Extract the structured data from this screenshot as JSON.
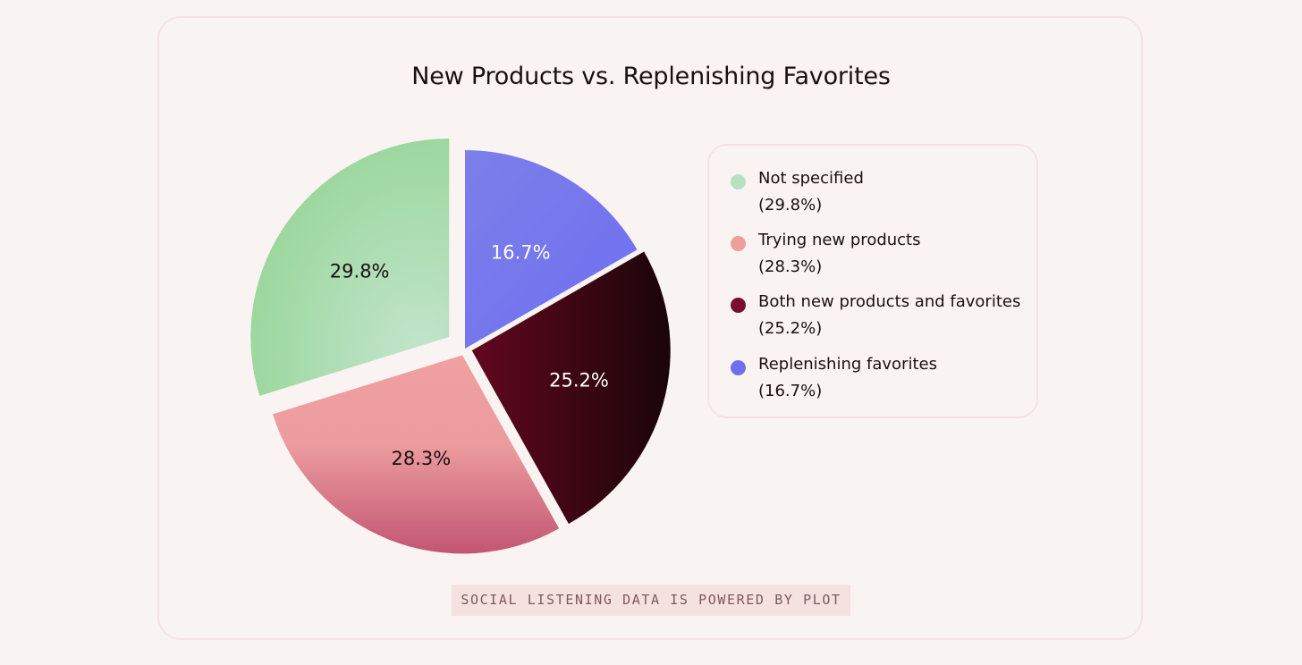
{
  "chart_data": {
    "type": "pie",
    "title": "New Products vs. Replenishing Favorites",
    "slices": [
      {
        "label": "Replenishing favorites",
        "value": 16.7,
        "display": "16.7%",
        "color": "#7275ee",
        "label_color": "#ffffff",
        "legend_dot": "#6f6ff0"
      },
      {
        "label": "Both new products and favorites",
        "value": 25.2,
        "display": "25.2%",
        "color": "#3a0811",
        "label_color": "#ffffff",
        "legend_dot": "#7b0d2e"
      },
      {
        "label": "Trying new products",
        "value": 28.3,
        "display": "28.3%",
        "color": "#e8939a",
        "label_color": "#1a0f12",
        "legend_dot": "#ef9e9e"
      },
      {
        "label": "Not specified",
        "value": 29.8,
        "display": "29.8%",
        "color": "#abdcaf",
        "label_color": "#1a0f12",
        "legend_dot": "#b7e2c2"
      }
    ],
    "legend_placement": "right"
  },
  "legend": [
    {
      "name": "Not specified",
      "pct": "(29.8%)",
      "color": "#b7e2c2"
    },
    {
      "name": "Trying new products",
      "pct": "(28.3%)",
      "color": "#ef9e9e"
    },
    {
      "name": "Both new products and favorites",
      "pct": "(25.2%)",
      "color": "#7b0d2e"
    },
    {
      "name": "Replenishing favorites",
      "pct": "(16.7%)",
      "color": "#6f6ff0"
    }
  ],
  "footer": "SOCIAL LISTENING DATA IS POWERED BY PLOT"
}
